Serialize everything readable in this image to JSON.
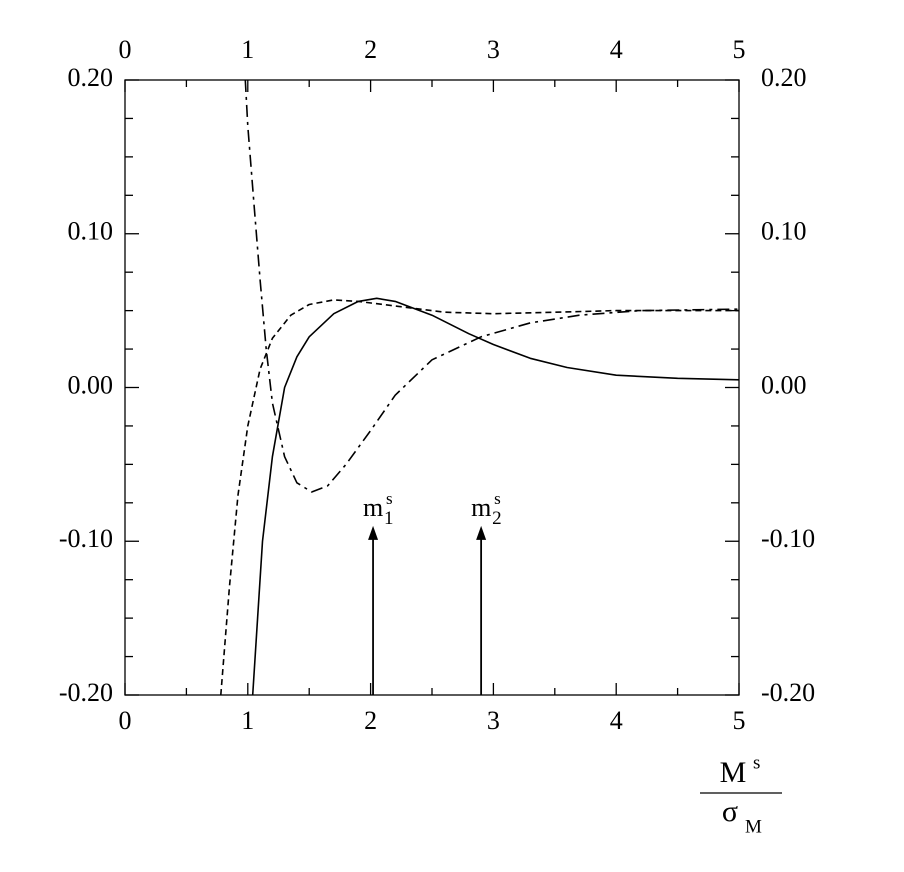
{
  "chart_data": {
    "type": "line",
    "xlim": [
      0,
      5
    ],
    "ylim": [
      -0.2,
      0.2
    ],
    "xticks": [
      0,
      1,
      2,
      3,
      4,
      5
    ],
    "xminorticks": [
      0.5,
      1.5,
      2.5,
      3.5,
      4.5
    ],
    "yticks": [
      {
        "value": -0.2,
        "label": "-0.20"
      },
      {
        "value": -0.1,
        "label": "-0.10"
      },
      {
        "value": 0,
        "label": "0.00"
      },
      {
        "value": 0.1,
        "label": "0.10"
      },
      {
        "value": 0.2,
        "label": "0.20"
      }
    ],
    "yminorticks": [
      -0.175,
      -0.15,
      -0.125,
      -0.075,
      -0.05,
      -0.025,
      0.025,
      0.05,
      0.075,
      0.125,
      0.15,
      0.175
    ],
    "xlabel": {
      "numerator": "M",
      "numerator_sup": "s",
      "denominator": "σ",
      "denominator_sub": "M"
    },
    "series": [
      {
        "color": "#000000",
        "dash": "solid",
        "x": [
          1.04,
          1.08,
          1.12,
          1.2,
          1.3,
          1.4,
          1.5,
          1.7,
          1.9,
          2.05,
          2.2,
          2.5,
          2.8,
          3.0,
          3.3,
          3.6,
          4.0,
          4.5,
          5.0
        ],
        "values": [
          -0.2,
          -0.15,
          -0.1,
          -0.045,
          0.0,
          0.02,
          0.033,
          0.048,
          0.056,
          0.058,
          0.056,
          0.047,
          0.035,
          0.028,
          0.019,
          0.013,
          0.008,
          0.006,
          0.005
        ]
      },
      {
        "color": "#000000",
        "dash": "dashed",
        "x": [
          0.78,
          0.85,
          0.92,
          1.0,
          1.1,
          1.2,
          1.35,
          1.5,
          1.7,
          1.9,
          2.2,
          2.6,
          3.0,
          3.5,
          4.0,
          4.5,
          5.0
        ],
        "values": [
          -0.2,
          -0.13,
          -0.07,
          -0.025,
          0.012,
          0.032,
          0.047,
          0.054,
          0.057,
          0.056,
          0.053,
          0.049,
          0.048,
          0.049,
          0.05,
          0.05,
          0.05
        ]
      },
      {
        "color": "#000000",
        "dash": "dashdot",
        "x": [
          0.98,
          1.0,
          1.05,
          1.1,
          1.15,
          1.2,
          1.3,
          1.4,
          1.52,
          1.65,
          1.8,
          2.0,
          2.2,
          2.5,
          2.9,
          3.3,
          3.7,
          4.2,
          5.0
        ],
        "values": [
          0.2,
          0.17,
          0.12,
          0.07,
          0.025,
          -0.01,
          -0.045,
          -0.062,
          -0.068,
          -0.064,
          -0.05,
          -0.028,
          -0.005,
          0.018,
          0.033,
          0.042,
          0.047,
          0.05,
          0.051
        ]
      }
    ],
    "annotations": [
      {
        "x": 2.02,
        "y_from": -0.2,
        "y_to": -0.09,
        "label": "m",
        "sub": "1",
        "sup": "s"
      },
      {
        "x": 2.9,
        "y_from": -0.2,
        "y_to": -0.09,
        "label": "m",
        "sub": "2",
        "sup": "s"
      }
    ]
  }
}
